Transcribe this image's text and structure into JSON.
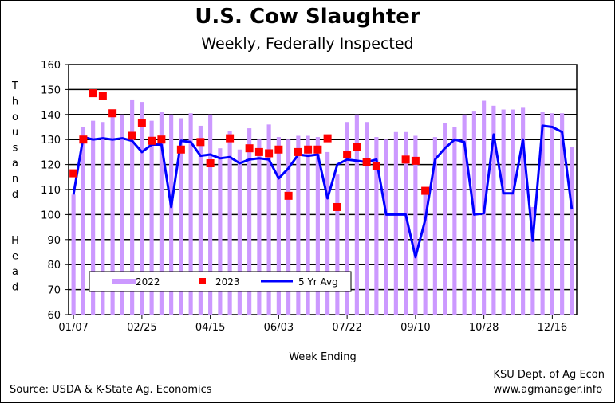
{
  "chart_data": {
    "type": "bar",
    "title": "U.S. Cow Slaughter",
    "subtitle": "Weekly, Federally Inspected",
    "xlabel": "Week Ending",
    "ylabel": "Thousand Head",
    "ylim": [
      60,
      160
    ],
    "yticks": [
      "60",
      "70",
      "80",
      "90",
      "100",
      "110",
      "120",
      "130",
      "140",
      "150",
      "160"
    ],
    "xtick_labels": [
      "01/07",
      "02/25",
      "04/15",
      "06/03",
      "07/22",
      "09/10",
      "10/28",
      "12/16"
    ],
    "xtick_weeks": [
      0,
      7,
      14,
      21,
      28,
      35,
      42,
      49
    ],
    "grid": "horizontal",
    "legend_position": "bottom-left",
    "weeks": 52,
    "series": [
      {
        "name": "2022",
        "kind": "bar",
        "color": "#cc99ff",
        "values": [
          108,
          135,
          137.5,
          137,
          141,
          140,
          146,
          145,
          137.5,
          141,
          140,
          138.5,
          140.5,
          135.5,
          140,
          126.5,
          133.5,
          126,
          134.5,
          130,
          136,
          131,
          130,
          131.5,
          131.5,
          131,
          125,
          116,
          137,
          140,
          137,
          131,
          130,
          133,
          133,
          131.5,
          110,
          131,
          136.5,
          135,
          140,
          141.5,
          145.5,
          143.5,
          142,
          142,
          143,
          103,
          141,
          140.5,
          140.5,
          127
        ]
      },
      {
        "name": "2023",
        "kind": "marker",
        "color": "#ff0000",
        "values": [
          116.5,
          130,
          148.5,
          147.5,
          140.5,
          null,
          131.5,
          136.5,
          129.5,
          130,
          null,
          126,
          null,
          129,
          120.5,
          null,
          130.5,
          null,
          126.5,
          125,
          124.5,
          126,
          107.5,
          125,
          126,
          126,
          130.5,
          103,
          124,
          127,
          121,
          119.5,
          null,
          null,
          122,
          121.5,
          109.5
        ]
      },
      {
        "name": "5 Yr Avg",
        "kind": "line",
        "color": "#0000ff",
        "values": [
          108,
          131,
          130,
          130.5,
          130,
          130.5,
          129.5,
          125,
          128,
          128,
          103,
          129.5,
          129,
          123.5,
          124,
          122.5,
          123,
          120.5,
          122,
          122.5,
          122,
          114.5,
          118.5,
          124,
          123.5,
          124,
          106.5,
          120,
          122,
          121.5,
          121,
          122,
          100,
          100,
          100,
          83,
          98,
          122,
          126.5,
          130,
          129,
          100,
          100.5,
          132,
          108.5,
          108.5,
          130,
          89.5,
          135.5,
          135,
          133,
          102
        ]
      }
    ]
  },
  "source_note": "Source:  USDA & K-State Ag. Economics",
  "credit": {
    "line1": "KSU Dept. of Ag Econ",
    "line2": "www.agmanager.info"
  }
}
